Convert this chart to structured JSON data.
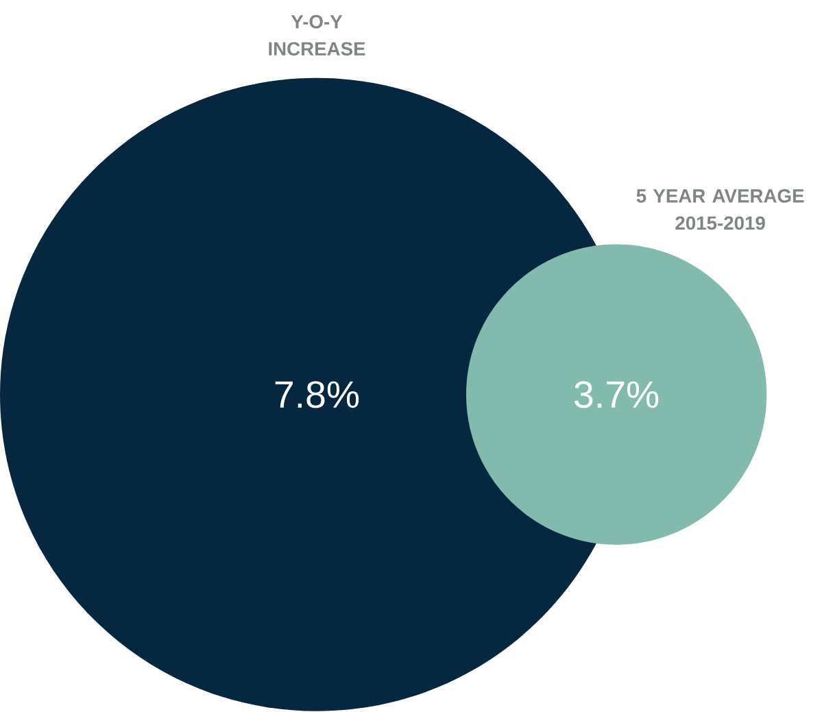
{
  "chart_data": {
    "type": "other",
    "categories": [
      "Y-O-Y INCREASE",
      "5 YEAR AVERAGE 2015-2019"
    ],
    "values": [
      7.8,
      3.7
    ],
    "value_labels": [
      "7.8%",
      "3.7%"
    ],
    "colors": [
      "#052840",
      "#82bbad"
    ]
  }
}
